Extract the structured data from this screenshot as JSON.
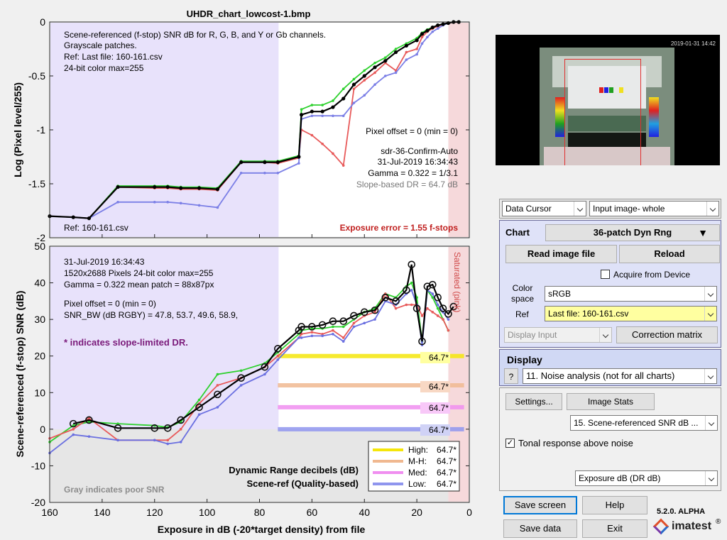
{
  "window": {
    "title": "UHDR_chart_lowcost-1.bmp"
  },
  "top_plot": {
    "ylabel": "Log (Pixel level/255)",
    "yticks": [
      "0",
      "-0.5",
      "-1",
      "-1.5",
      "-2"
    ],
    "info_lines": [
      "Scene-referenced (f-stop) SNR dB for R, G, B, and Y or Gb channels.",
      "Grayscale patches.",
      "Ref: Last file: 160-161.csv",
      "24-bit color  max=255"
    ],
    "right_info": [
      "Pixel offset = 0  (min = 0)",
      "sdr-36-Confirm-Auto",
      "31-Jul-2019 16:34:43",
      "Gamma = 0.322 = 1/3.1"
    ],
    "slope_dr": "Slope-based DR = 64.7 dB",
    "ref_note": "Ref: 160-161.csv",
    "exposure_error": "Exposure error = 1.55 f-stops"
  },
  "bottom_plot": {
    "ylabel": "Scene-referenced (f-stop) SNR (dB)",
    "xlabel": "Exposure in dB (-20*target density)   from file",
    "yticks": [
      "50",
      "40",
      "30",
      "20",
      "10",
      "0",
      "-10",
      "-20"
    ],
    "xticks": [
      "160",
      "140",
      "120",
      "100",
      "80",
      "60",
      "40",
      "20",
      "0"
    ],
    "info_lines": [
      "31-Jul-2019 16:34:43",
      "1520x2688 Pixels  24-bit color  max=255",
      "Gamma = 0.322   mean patch = 88x87px",
      "",
      "Pixel offset = 0  (min = 0)",
      "SNR_BW (dB RGBY) = 47.8, 53.7, 49.6, 58.9,"
    ],
    "slope_note": "* indicates slope-limited DR.",
    "saturated_label": "Saturated (pink)",
    "dr_title_1": "Dynamic Range decibels (dB)",
    "dr_title_2": "Scene-ref (Quality-based)",
    "gray_note": "Gray indicates poor SNR",
    "dr_labels": [
      "64.7*",
      "64.7*",
      "64.7*",
      "64.7*"
    ],
    "legend": [
      {
        "label": "High:",
        "value": "64.7*",
        "color": "#f5e60a"
      },
      {
        "label": "M-H:",
        "value": "64.7*",
        "color": "#f0b890"
      },
      {
        "label": "Med:",
        "value": "64.7*",
        "color": "#f08ef0"
      },
      {
        "label": "Low:",
        "value": "64.7*",
        "color": "#8f95ee"
      }
    ]
  },
  "chart_data": [
    {
      "type": "line",
      "title": "UHDR_chart_lowcost-1.bmp",
      "xlabel": "",
      "ylabel": "Log (Pixel level/255)",
      "xlim": [
        160,
        0
      ],
      "ylim": [
        -2,
        0
      ],
      "series": [
        {
          "color": "#2fd12f",
          "x": [
            160,
            151,
            145,
            134,
            120,
            115,
            110,
            103,
            96,
            87,
            78,
            73,
            65,
            64,
            60,
            56,
            52,
            48,
            44,
            40,
            36,
            32,
            28,
            24,
            20,
            18,
            16,
            14,
            12,
            10,
            8,
            6,
            4
          ],
          "y": [
            -1.8,
            -1.81,
            -1.82,
            -1.52,
            -1.52,
            -1.52,
            -1.53,
            -1.53,
            -1.54,
            -1.29,
            -1.29,
            -1.29,
            -1.24,
            -0.81,
            -0.77,
            -0.77,
            -0.73,
            -0.62,
            -0.53,
            -0.45,
            -0.38,
            -0.33,
            -0.25,
            -0.2,
            -0.15,
            -0.1,
            -0.07,
            -0.05,
            -0.03,
            -0.02,
            -0.01,
            0,
            0
          ]
        },
        {
          "color": "#e85a5a",
          "x": [
            160,
            151,
            145,
            134,
            120,
            115,
            110,
            103,
            96,
            87,
            78,
            73,
            65,
            64,
            60,
            56,
            52,
            48,
            44,
            40,
            36,
            32,
            28,
            24,
            20,
            18,
            16,
            14,
            12,
            10,
            8,
            6,
            4
          ],
          "y": [
            -1.8,
            -1.81,
            -1.82,
            -1.53,
            -1.54,
            -1.54,
            -1.55,
            -1.55,
            -1.56,
            -1.3,
            -1.3,
            -1.31,
            -1.26,
            -1.0,
            -1.05,
            -1.13,
            -1.22,
            -1.33,
            -0.62,
            -0.54,
            -0.47,
            -0.38,
            -0.45,
            -0.28,
            -0.25,
            -0.14,
            -0.09,
            -0.06,
            -0.04,
            -0.02,
            -0.01,
            0,
            0
          ]
        },
        {
          "color": "#7b7fe6",
          "x": [
            160,
            151,
            145,
            134,
            120,
            115,
            110,
            103,
            96,
            87,
            78,
            73,
            65,
            64,
            60,
            56,
            52,
            48,
            44,
            40,
            36,
            32,
            28,
            24,
            20,
            18,
            16,
            14,
            12,
            10,
            8,
            6,
            4
          ],
          "y": [
            -1.8,
            -1.81,
            -1.82,
            -1.67,
            -1.67,
            -1.67,
            -1.68,
            -1.7,
            -1.72,
            -1.4,
            -1.4,
            -1.4,
            -1.31,
            -0.9,
            -0.87,
            -0.87,
            -0.87,
            -0.87,
            -0.75,
            -0.68,
            -0.58,
            -0.5,
            -0.47,
            -0.35,
            -0.3,
            -0.2,
            -0.14,
            -0.09,
            -0.06,
            -0.03,
            -0.01,
            0,
            0
          ]
        },
        {
          "color": "#000000",
          "x": [
            160,
            151,
            145,
            134,
            120,
            115,
            110,
            103,
            96,
            87,
            78,
            73,
            65,
            64,
            60,
            56,
            52,
            48,
            44,
            40,
            36,
            32,
            28,
            24,
            20,
            18,
            16,
            14,
            12,
            10,
            8,
            6,
            4
          ],
          "y": [
            -1.8,
            -1.81,
            -1.82,
            -1.53,
            -1.53,
            -1.53,
            -1.54,
            -1.54,
            -1.55,
            -1.3,
            -1.3,
            -1.3,
            -1.25,
            -0.86,
            -0.83,
            -0.83,
            -0.79,
            -0.71,
            -0.58,
            -0.5,
            -0.42,
            -0.36,
            -0.28,
            -0.22,
            -0.17,
            -0.11,
            -0.08,
            -0.05,
            -0.03,
            -0.02,
            -0.01,
            0,
            0
          ]
        }
      ]
    },
    {
      "type": "line",
      "title": "",
      "xlabel": "Exposure in dB (-20*target density)   from file",
      "ylabel": "Scene-referenced (f-stop) SNR (dB)",
      "xlim": [
        160,
        0
      ],
      "ylim": [
        -20,
        50
      ],
      "series": [
        {
          "color": "#2fd12f",
          "x": [
            160,
            151,
            145,
            134,
            120,
            115,
            110,
            103,
            96,
            87,
            78,
            73,
            65,
            64,
            60,
            56,
            52,
            48,
            44,
            40,
            36,
            32,
            28,
            24,
            22,
            20,
            18,
            16,
            14,
            12,
            10,
            8
          ],
          "y": [
            -3.5,
            1,
            2,
            1.5,
            1,
            0.5,
            2,
            8,
            15,
            16,
            18,
            21,
            26,
            27,
            27.5,
            27.5,
            28,
            28,
            30,
            32,
            33,
            37,
            36,
            39,
            40,
            36,
            24,
            38,
            36,
            33,
            30,
            27
          ]
        },
        {
          "color": "#e85a5a",
          "x": [
            160,
            151,
            145,
            134,
            120,
            115,
            110,
            103,
            96,
            87,
            78,
            73,
            65,
            64,
            60,
            56,
            52,
            48,
            44,
            40,
            36,
            32,
            28,
            24,
            22,
            20,
            18,
            16,
            14,
            12,
            10,
            8
          ],
          "y": [
            -2.5,
            0,
            3,
            -3,
            -3,
            -3,
            0,
            7,
            12,
            14,
            17,
            20,
            25,
            26,
            26.5,
            26,
            27,
            25,
            29,
            31,
            32,
            37,
            33,
            34,
            34,
            34,
            31,
            33,
            32,
            31,
            30,
            27
          ]
        },
        {
          "color": "#6a6fe0",
          "x": [
            160,
            151,
            145,
            134,
            120,
            115,
            110,
            103,
            96,
            87,
            78,
            73,
            65,
            64,
            60,
            56,
            52,
            48,
            44,
            40,
            36,
            32,
            28,
            24,
            22,
            20,
            18,
            16,
            14,
            12,
            10,
            8
          ],
          "y": [
            -6.5,
            -1.5,
            -2,
            -3,
            -3,
            -4,
            -3.5,
            4,
            6,
            12,
            15,
            19,
            25,
            25,
            25.5,
            25.5,
            26,
            24,
            28,
            29,
            30,
            35,
            34,
            37,
            38,
            34,
            23,
            38,
            37,
            34,
            32,
            30
          ]
        },
        {
          "color": "#000000",
          "x": [
            151,
            145,
            134,
            120,
            115,
            110,
            103,
            96,
            87,
            78,
            73,
            65,
            64,
            60,
            56,
            52,
            48,
            44,
            40,
            36,
            32,
            28,
            24,
            22,
            20,
            18,
            16,
            14,
            12,
            10,
            8,
            6
          ],
          "y": [
            1.5,
            2.5,
            0.3,
            0.3,
            0.3,
            2.5,
            6,
            9.5,
            14,
            17,
            22,
            27,
            28,
            28,
            28.5,
            29.5,
            29.5,
            31,
            32,
            32.5,
            36,
            35,
            38,
            45,
            33,
            24,
            39,
            39.5,
            36,
            33,
            31.5,
            33.5
          ]
        }
      ],
      "dr_bars": [
        {
          "name": "High",
          "value": 20,
          "color": "#f5e60a"
        },
        {
          "name": "M-H",
          "value": 12,
          "color": "#f0b890"
        },
        {
          "name": "Med",
          "value": 6,
          "color": "#f08ef0"
        },
        {
          "name": "Low",
          "value": 0,
          "color": "#8f95ee"
        }
      ]
    }
  ],
  "thumbnail": {
    "timestamp": "2019-01-31 14:42"
  },
  "controls": {
    "mode_select": "Data Cursor",
    "input_select": "Input image- whole",
    "chart_label": "Chart",
    "chart_type": "36-patch Dyn Rng",
    "read_image": "Read image file",
    "reload": "Reload",
    "acquire": "Acquire from Device",
    "color_space_label": "Color space",
    "color_space": "sRGB",
    "ref_label": "Ref",
    "ref_value": "Last file: 160-161.csv",
    "display_input": "Display Input",
    "correction": "Correction matrix",
    "display_label": "Display",
    "help_q": "?",
    "display_select": "11. Noise analysis (not for all charts)",
    "settings": "Settings...",
    "image_stats": "Image Stats",
    "plot_select": "15. Scene-referenced SNR dB ...",
    "tonal_label": "Tonal response above noise",
    "exposure_select": "Exposure dB (DR dB)",
    "save_screen": "Save screen",
    "help": "Help",
    "save_data": "Save data",
    "exit": "Exit",
    "version": "5.2.0. ALPHA",
    "brand": "imatest",
    "registered": "®"
  }
}
